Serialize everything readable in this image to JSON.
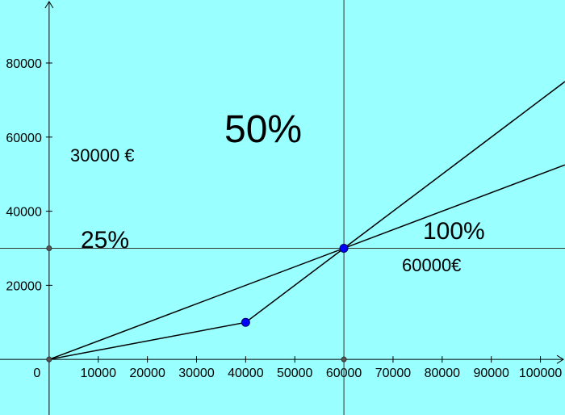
{
  "chart_data": {
    "type": "line",
    "title": "",
    "xlabel": "",
    "ylabel": "",
    "xlim": [
      -10000,
      105000
    ],
    "ylim": [
      -15000,
      97000
    ],
    "grid": false,
    "background": "#99ffff",
    "x_ticks": [
      0,
      10000,
      20000,
      30000,
      40000,
      50000,
      60000,
      70000,
      80000,
      90000,
      100000
    ],
    "x_tick_labels": [
      "0",
      "10000",
      "20000",
      "30000",
      "40000",
      "50000",
      "60000",
      "70000",
      "80000",
      "90000",
      "100000"
    ],
    "y_ticks": [
      20000,
      40000,
      60000,
      80000
    ],
    "y_tick_labels": [
      "20000",
      "40000",
      "60000",
      "80000"
    ],
    "reference_lines": [
      {
        "orientation": "horizontal",
        "value": 30000
      },
      {
        "orientation": "vertical",
        "value": 60000
      }
    ],
    "series": [
      {
        "values": [
          [
            0,
            0
          ],
          [
            105000,
            52500
          ]
        ],
        "color": "#000000"
      },
      {
        "values": [
          [
            0,
            0
          ],
          [
            40000,
            10000
          ],
          [
            60000,
            30000
          ],
          [
            105000,
            75000
          ]
        ],
        "color": "#000000"
      }
    ],
    "points": [
      {
        "x": 40000,
        "y": 10000,
        "color": "#0000ff"
      },
      {
        "x": 60000,
        "y": 30000,
        "color": "#0000ff"
      },
      {
        "x": 0,
        "y": 0,
        "color": "#555555"
      },
      {
        "x": 0,
        "y": 30000,
        "color": "#555555"
      },
      {
        "x": 60000,
        "y": 0,
        "color": "#555555"
      }
    ],
    "annotations": [
      {
        "text": "50%",
        "size": "large"
      },
      {
        "text": "30000 €",
        "size": "small"
      },
      {
        "text": "25%",
        "size": "medium"
      },
      {
        "text": "100%",
        "size": "medium"
      },
      {
        "text": "60000€",
        "size": "small"
      }
    ]
  }
}
